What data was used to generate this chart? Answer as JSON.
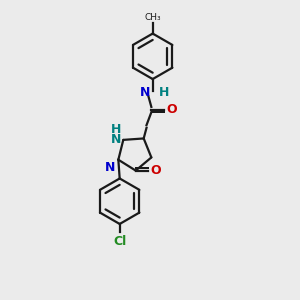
{
  "bg_color": "#ebebeb",
  "bond_color": "#1a1a1a",
  "N_color": "#0000cd",
  "O_color": "#cc0000",
  "Cl_color": "#228B22",
  "NH_color": "#008080",
  "line_width": 1.6,
  "figsize": [
    3.0,
    3.0
  ],
  "dpi": 100,
  "xlim": [
    3.0,
    8.5
  ],
  "ylim": [
    0.5,
    11.5
  ]
}
